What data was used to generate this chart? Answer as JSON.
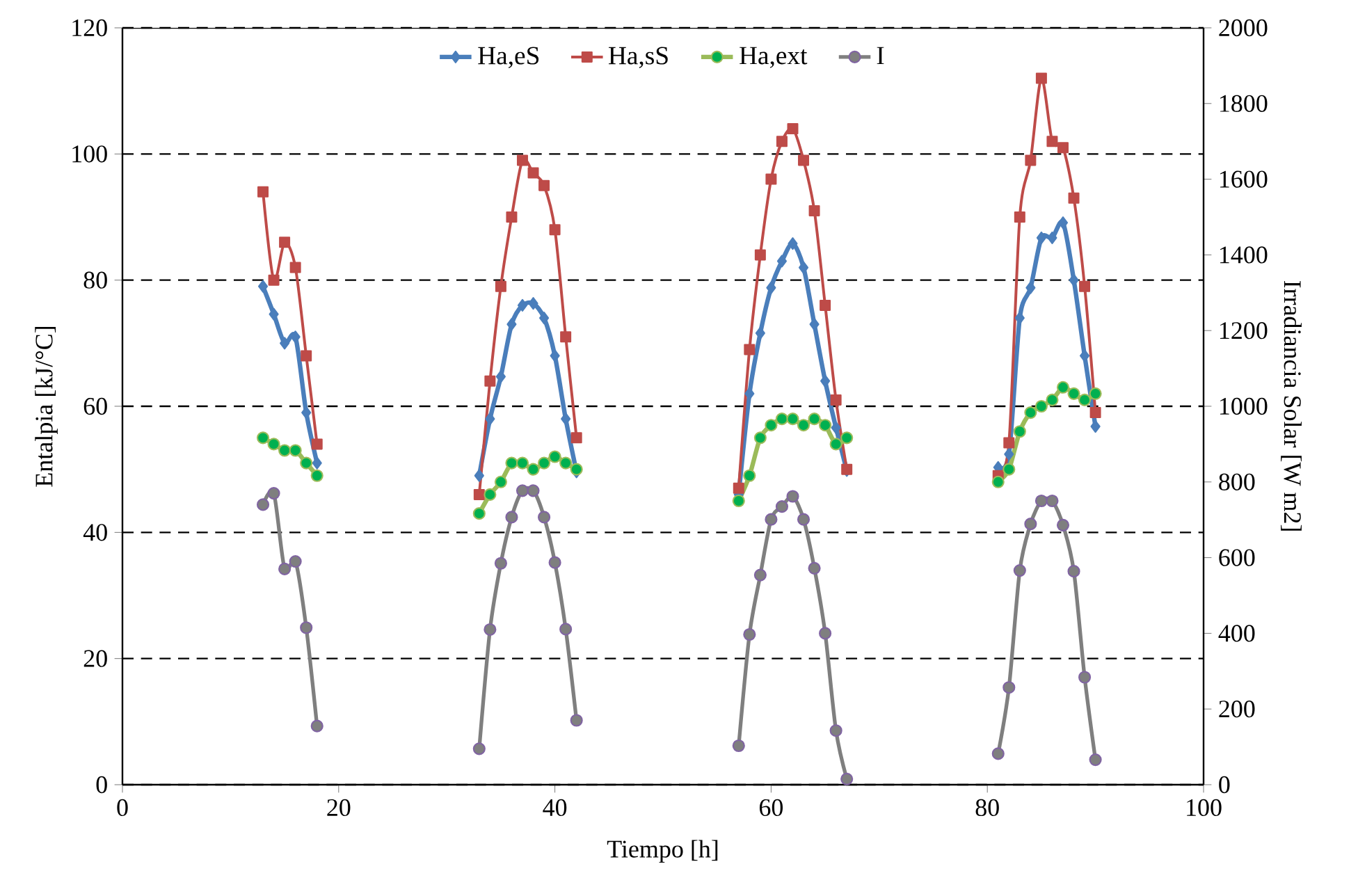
{
  "chart_data": {
    "type": "line",
    "xlabel": "Tiempo [h]",
    "ylabel": "Entalpia [kJ/°C]",
    "y2label": "Irradiancia Solar [W m2]",
    "x": [
      13,
      14,
      15,
      16,
      17,
      18,
      33,
      34,
      35,
      36,
      37,
      38,
      39,
      40,
      41,
      42,
      57,
      58,
      59,
      60,
      61,
      62,
      63,
      64,
      65,
      66,
      67,
      81,
      82,
      83,
      84,
      85,
      86,
      87,
      88,
      89,
      90
    ],
    "series": [
      {
        "name": "Ha,eS",
        "color": "#4a7ebb",
        "marker": "diamond",
        "values": [
          79,
          74.6,
          70,
          71,
          59,
          51,
          49,
          58,
          64.7,
          73,
          76,
          76.3,
          74,
          68,
          58,
          49.6,
          46,
          62,
          71.6,
          78.8,
          83,
          85.8,
          82,
          73,
          64,
          56.6,
          49.8,
          50.3,
          52.4,
          74,
          78.8,
          86.7,
          86.7,
          89.1,
          80,
          68,
          56.8
        ]
      },
      {
        "name": "Ha,sS",
        "color": "#be4b48",
        "marker": "square",
        "values": [
          94,
          80,
          86,
          82,
          68,
          54,
          46,
          64,
          79,
          90,
          99,
          97,
          95,
          88,
          71,
          55,
          47,
          69,
          84,
          96,
          102,
          104,
          99,
          91,
          76,
          61,
          50,
          49,
          54.2,
          90,
          99,
          112,
          102,
          101,
          93,
          79,
          59
        ]
      },
      {
        "name": "Ha,ext",
        "color": "#9bbb59",
        "marker": "circle",
        "values": [
          55,
          54,
          53,
          53,
          51,
          49,
          43,
          46,
          48,
          51,
          51,
          50,
          51,
          52,
          51,
          50,
          45,
          49,
          55,
          57,
          58,
          58,
          57,
          58,
          57,
          54,
          55,
          48,
          50,
          56,
          59,
          60,
          61,
          63,
          62,
          61,
          62
        ]
      },
      {
        "name": "I",
        "color": "#7f7f7f",
        "marker": "circle",
        "axis": "y2",
        "values": [
          740,
          770,
          570,
          590,
          415,
          155,
          95,
          410,
          585,
          707,
          777,
          777,
          707,
          587,
          411,
          170,
          103,
          397,
          554,
          701,
          735,
          762,
          701,
          572,
          400,
          143,
          15,
          82,
          257,
          566,
          689,
          750,
          750,
          686,
          564,
          284,
          66
        ]
      }
    ],
    "xlim": [
      0,
      100
    ],
    "xticks": [
      0,
      20,
      40,
      60,
      80,
      100
    ],
    "ylim": [
      0,
      120
    ],
    "yticks": [
      0,
      20,
      40,
      60,
      80,
      100,
      120
    ],
    "y2lim": [
      0,
      2000
    ],
    "y2ticks": [
      0,
      200,
      400,
      600,
      800,
      1000,
      1200,
      1400,
      1600,
      1800,
      2000
    ],
    "grid": "y",
    "legend": "top",
    "line_style": "solid"
  }
}
